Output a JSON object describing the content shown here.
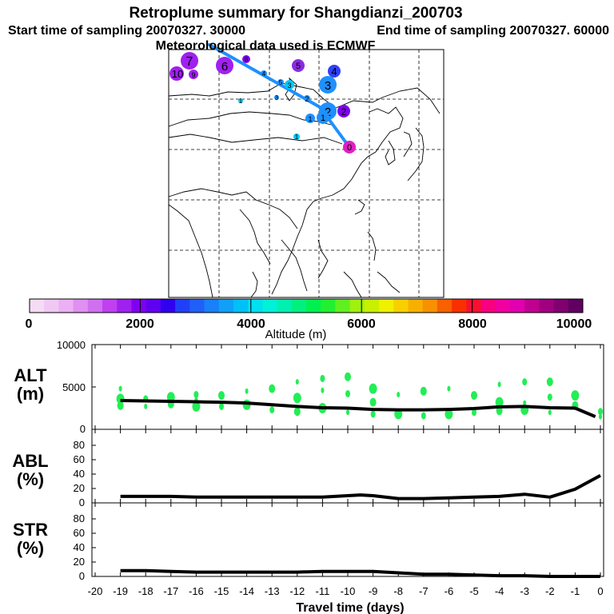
{
  "header": {
    "title": "Retroplume summary for Shangdianzi_200703",
    "start_label": "Start time of sampling 20070327. 30000",
    "end_label": "End time of sampling 20070327. 60000",
    "met_label": "Meteorological data used is ECMWF"
  },
  "colorbar": {
    "label": "Altitude (m)",
    "ticks": [
      "0",
      "2000",
      "4000",
      "6000",
      "8000",
      "10000"
    ],
    "colors": [
      "#f4dcf4",
      "#f0c8f4",
      "#ecb0f4",
      "#e090f0",
      "#d070f0",
      "#c040f0",
      "#a020f0",
      "#8000f0",
      "#6000f0",
      "#3000f0",
      "#2040f8",
      "#2060f8",
      "#1880f8",
      "#10a0f8",
      "#00c0f8",
      "#00e0f0",
      "#00f0d8",
      "#00f0b0",
      "#00f080",
      "#00f050",
      "#20f030",
      "#60f020",
      "#a0f010",
      "#c8f000",
      "#f0f000",
      "#f8d000",
      "#f8b000",
      "#f89000",
      "#f86000",
      "#f83000",
      "#f81030",
      "#f80080",
      "#f000a0",
      "#e000b0",
      "#c00090",
      "#a00080",
      "#800070",
      "#600060"
    ]
  },
  "map": {
    "track_color": "#1e90ff",
    "markers": [
      {
        "label": "7",
        "color": "#a020f0"
      },
      {
        "label": "6",
        "color": "#a020f0"
      },
      {
        "label": "8",
        "color": "#8000f0"
      },
      {
        "label": "5",
        "color": "#8a2be2"
      },
      {
        "label": "4",
        "color": "#3040f8"
      },
      {
        "label": "10",
        "color": "#a020f0"
      },
      {
        "label": "9",
        "color": "#a020f0"
      },
      {
        "label": "3",
        "color": "#1e90ff"
      },
      {
        "label": "2",
        "color": "#1e90ff"
      },
      {
        "label": "2",
        "color": "#8000f0"
      },
      {
        "label": "1",
        "color": "#1e90ff"
      },
      {
        "label": "1",
        "color": "#00c8f8"
      },
      {
        "label": "0",
        "color": "#e020c0"
      },
      {
        "label": "5",
        "color": "#1e90ff"
      },
      {
        "label": "4",
        "color": "#1e90ff"
      },
      {
        "label": "3",
        "color": "#1e90ff"
      },
      {
        "label": "2",
        "color": "#1e90ff"
      },
      {
        "label": "3",
        "color": "#00c8f8"
      },
      {
        "label": "1",
        "color": "#00c8f8"
      },
      {
        "label": "1",
        "color": "#1e90ff"
      }
    ]
  },
  "panels": {
    "alt_label_1": "ALT",
    "alt_label_2": "(m)",
    "abl_label_1": "ABL",
    "abl_label_2": "(%)",
    "str_label_1": "STR",
    "str_label_2": "(%)",
    "xlabel": "Travel time (days)",
    "x_ticks": [
      "-20",
      "-19",
      "-18",
      "-17",
      "-16",
      "-15",
      "-14",
      "-13",
      "-12",
      "-11",
      "-10",
      "-9",
      "-8",
      "-7",
      "-6",
      "-5",
      "-4",
      "-3",
      "-2",
      "-1",
      "0"
    ],
    "alt_ticks": [
      "0",
      "5000",
      "10000"
    ],
    "pct_ticks": [
      "0",
      "20",
      "40",
      "60",
      "80"
    ],
    "pct_ticks_str": [
      "0",
      "20",
      "40",
      "60",
      "80"
    ]
  },
  "chart_data": [
    {
      "type": "line",
      "name": "ALT",
      "title": "",
      "xlabel": "Travel time (days)",
      "ylabel": "ALT (m)",
      "xlim": [
        -20,
        0
      ],
      "ylim": [
        0,
        10000
      ],
      "series": [
        {
          "name": "mean altitude",
          "x": [
            -19,
            -18,
            -17,
            -16,
            -15,
            -14,
            -13,
            -12,
            -11,
            -10,
            -9,
            -8,
            -7,
            -6,
            -5,
            -4,
            -3,
            -2,
            -1,
            -0.2
          ],
          "values": [
            3400,
            3350,
            3300,
            3250,
            3200,
            3100,
            2900,
            2700,
            2550,
            2500,
            2350,
            2300,
            2300,
            2350,
            2450,
            2650,
            2700,
            2550,
            2500,
            1500
          ]
        }
      ],
      "scatter": {
        "name": "cluster altitudes",
        "color": "#22ee55",
        "points": [
          {
            "x": -19,
            "y": 4800
          },
          {
            "x": -19,
            "y": 3600
          },
          {
            "x": -19,
            "y": 2800
          },
          {
            "x": -18,
            "y": 3600
          },
          {
            "x": -18,
            "y": 2700
          },
          {
            "x": -17,
            "y": 3800
          },
          {
            "x": -17,
            "y": 3000
          },
          {
            "x": -16,
            "y": 4100
          },
          {
            "x": -16,
            "y": 3500
          },
          {
            "x": -16,
            "y": 2700
          },
          {
            "x": -15,
            "y": 4000
          },
          {
            "x": -15,
            "y": 2700
          },
          {
            "x": -14,
            "y": 4500
          },
          {
            "x": -14,
            "y": 2900
          },
          {
            "x": -13,
            "y": 4800
          },
          {
            "x": -13,
            "y": 2300
          },
          {
            "x": -12,
            "y": 5600
          },
          {
            "x": -12,
            "y": 3700
          },
          {
            "x": -12,
            "y": 2100
          },
          {
            "x": -11,
            "y": 6000
          },
          {
            "x": -11,
            "y": 4600
          },
          {
            "x": -11,
            "y": 2500
          },
          {
            "x": -10,
            "y": 6200
          },
          {
            "x": -10,
            "y": 4200
          },
          {
            "x": -10,
            "y": 2000
          },
          {
            "x": -9,
            "y": 4800
          },
          {
            "x": -9,
            "y": 3200
          },
          {
            "x": -9,
            "y": 1800
          },
          {
            "x": -8,
            "y": 4100
          },
          {
            "x": -8,
            "y": 1800
          },
          {
            "x": -7,
            "y": 4500
          },
          {
            "x": -7,
            "y": 1600
          },
          {
            "x": -6,
            "y": 4800
          },
          {
            "x": -6,
            "y": 1800
          },
          {
            "x": -5,
            "y": 4000
          },
          {
            "x": -5,
            "y": 2000
          },
          {
            "x": -4,
            "y": 5300
          },
          {
            "x": -4,
            "y": 3200
          },
          {
            "x": -4,
            "y": 2200
          },
          {
            "x": -3,
            "y": 5600
          },
          {
            "x": -3,
            "y": 3100
          },
          {
            "x": -3,
            "y": 2300
          },
          {
            "x": -2,
            "y": 5600
          },
          {
            "x": -2,
            "y": 3800
          },
          {
            "x": -2,
            "y": 2000
          },
          {
            "x": -1,
            "y": 4000
          },
          {
            "x": -1,
            "y": 2800
          },
          {
            "x": 0,
            "y": 2100
          },
          {
            "x": 0,
            "y": 1500
          }
        ]
      }
    },
    {
      "type": "line",
      "name": "ABL",
      "xlabel": "Travel time (days)",
      "ylabel": "ABL (%)",
      "xlim": [
        -20,
        0
      ],
      "ylim": [
        0,
        100
      ],
      "series": [
        {
          "name": "fraction in ABL",
          "x": [
            -19,
            -18,
            -17,
            -16,
            -15,
            -14,
            -13,
            -12,
            -11,
            -10,
            -9.5,
            -9,
            -8,
            -7,
            -6,
            -5,
            -4,
            -3,
            -2,
            -1,
            0
          ],
          "values": [
            9,
            9,
            9,
            8,
            8,
            8,
            8,
            8,
            8,
            10,
            11,
            10,
            6,
            6,
            7,
            8,
            9,
            12,
            8,
            19,
            38
          ]
        }
      ]
    },
    {
      "type": "line",
      "name": "STR",
      "xlabel": "Travel time (days)",
      "ylabel": "STR (%)",
      "xlim": [
        -20,
        0
      ],
      "ylim": [
        0,
        100
      ],
      "series": [
        {
          "name": "fraction in stratosphere",
          "x": [
            -19,
            -18,
            -17,
            -16,
            -15,
            -14,
            -13,
            -12,
            -11,
            -10,
            -9,
            -8,
            -7,
            -6,
            -5,
            -4,
            -3,
            -2,
            -1,
            0
          ],
          "values": [
            8,
            8,
            7,
            6,
            6,
            6,
            6,
            6,
            7,
            7,
            7,
            5,
            3,
            3,
            2,
            1,
            1,
            0,
            0,
            0
          ]
        }
      ]
    }
  ]
}
